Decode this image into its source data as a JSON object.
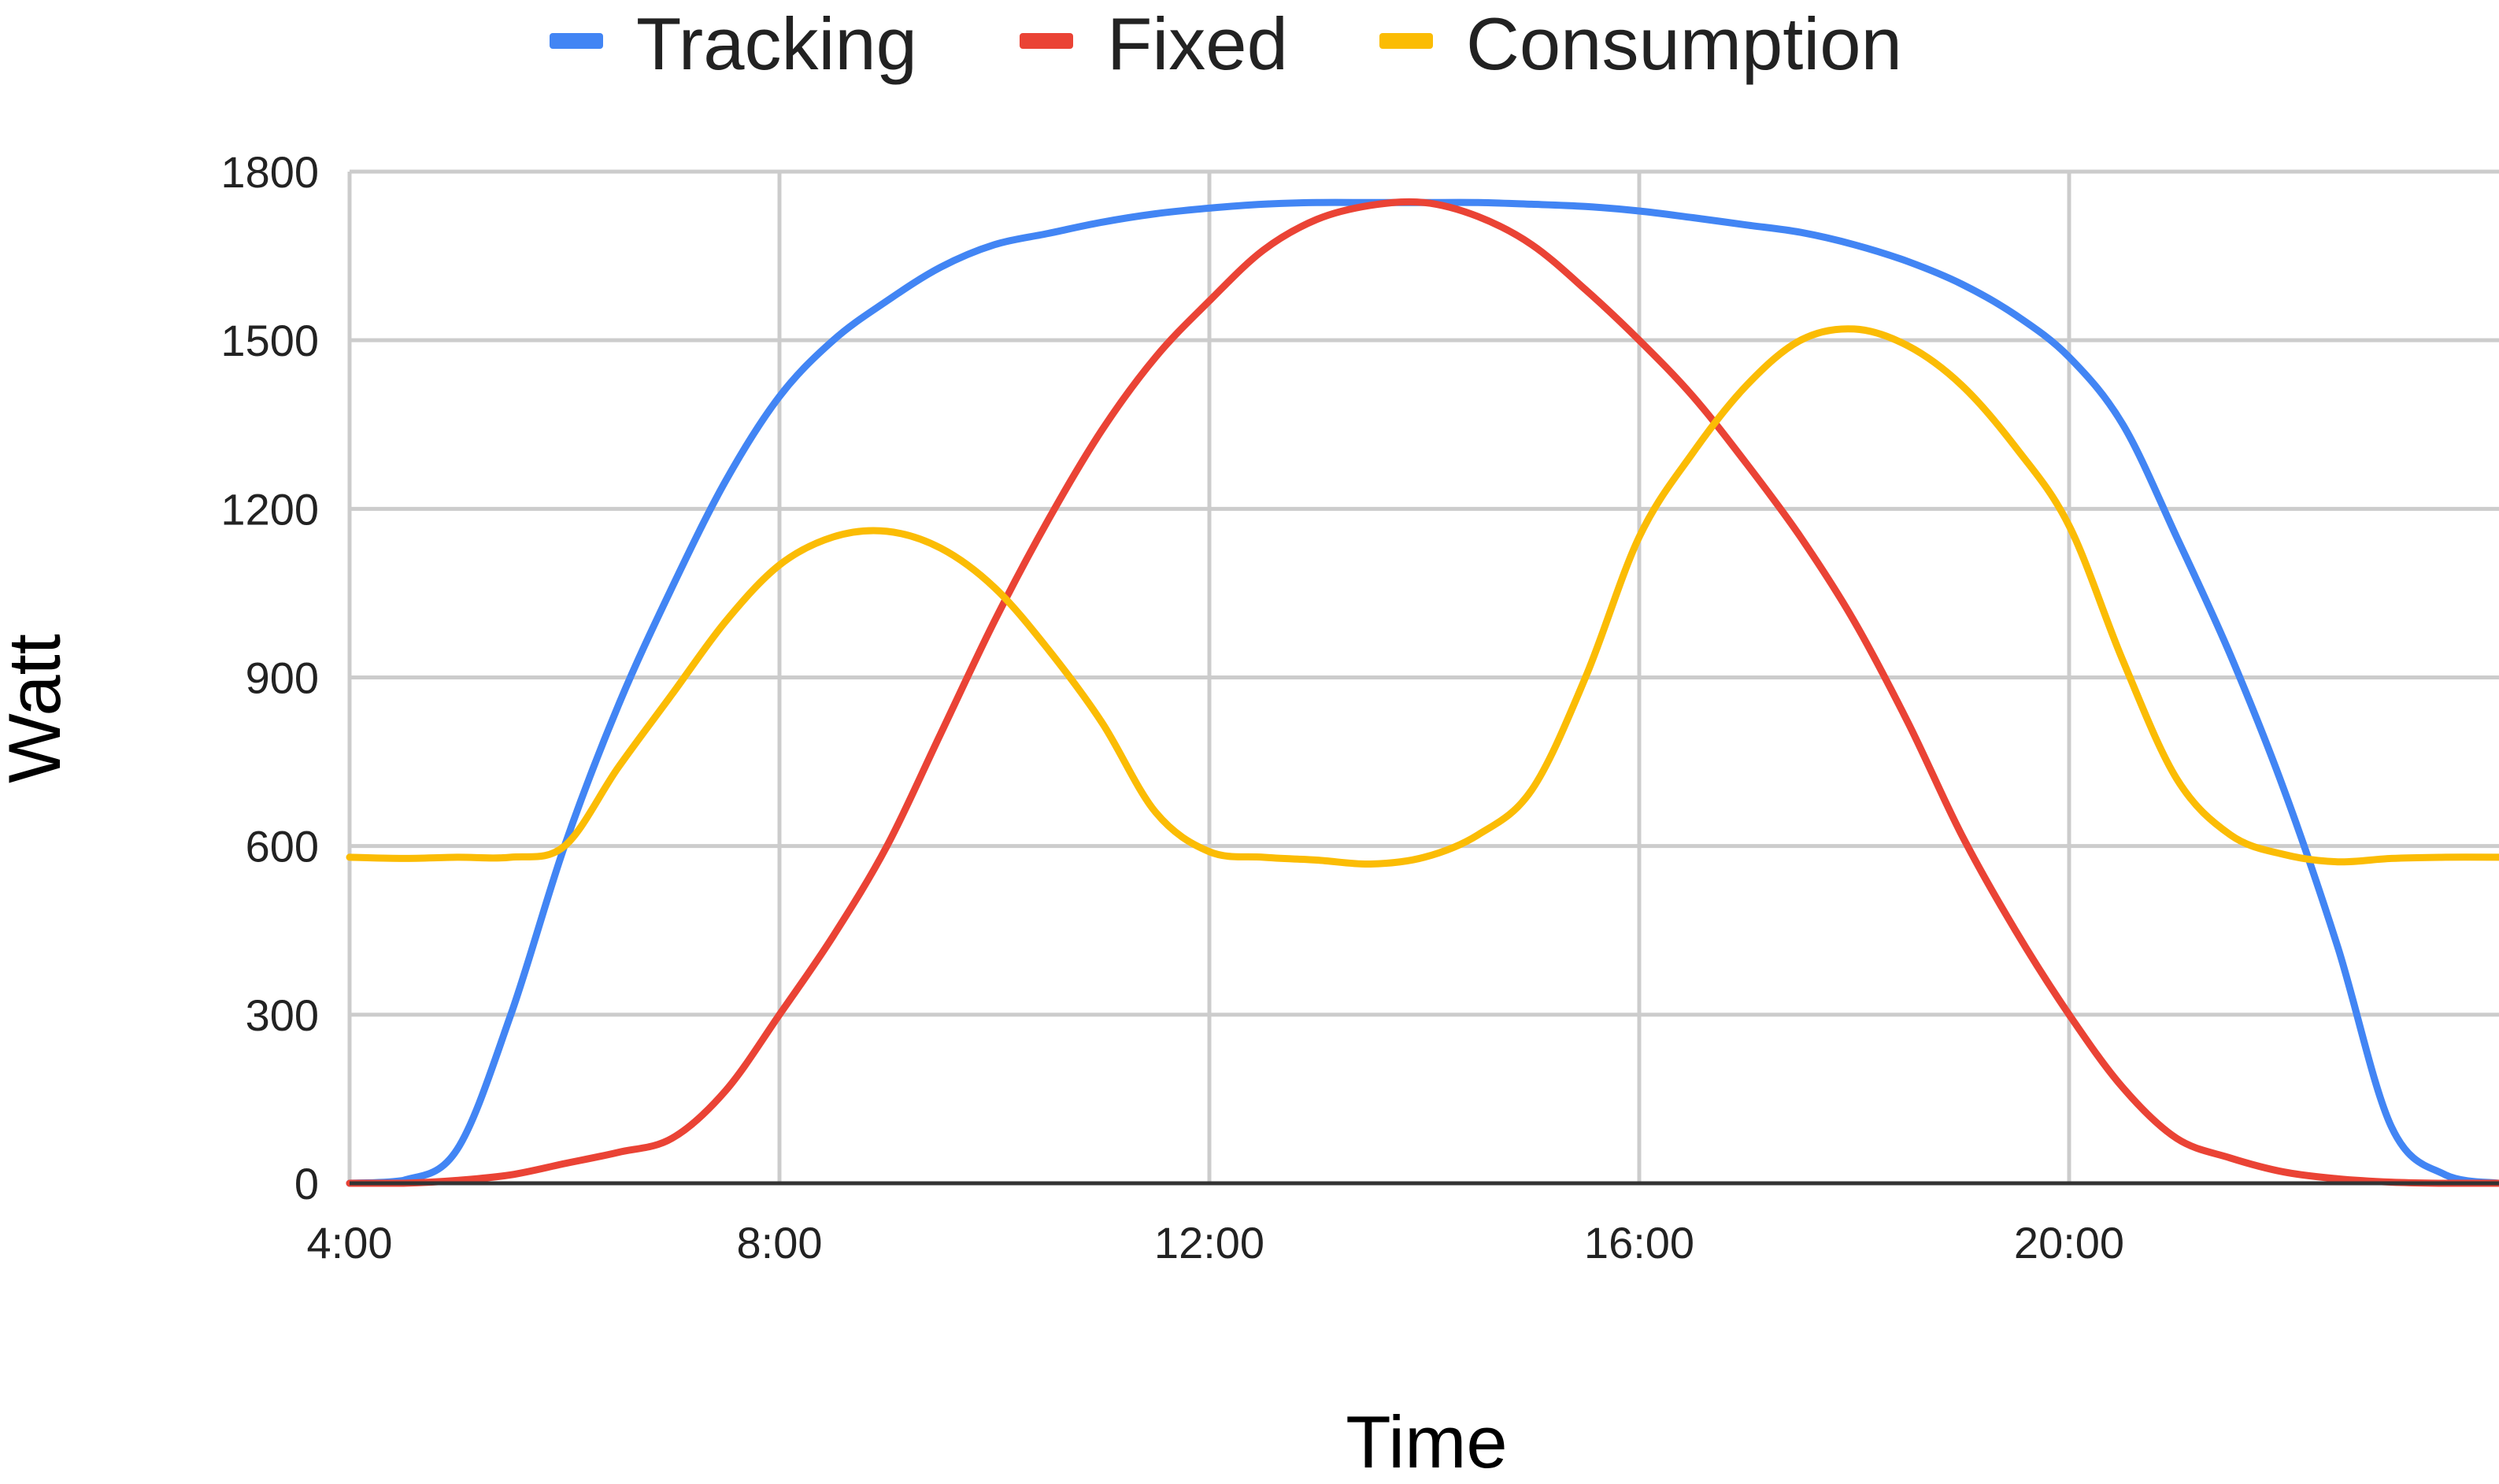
{
  "chart_data": {
    "type": "line",
    "title": "",
    "xlabel": "Time",
    "ylabel": "Watt",
    "x_unit": "hour of day",
    "xlim": [
      4,
      24
    ],
    "ylim": [
      0,
      1800
    ],
    "x_tick_values": [
      4,
      8,
      12,
      16,
      20
    ],
    "x_tick_labels": [
      "4:00",
      "8:00",
      "12:00",
      "16:00",
      "20:00"
    ],
    "y_tick_values": [
      0,
      300,
      600,
      900,
      1200,
      1500,
      1800
    ],
    "y_tick_labels": [
      "0",
      "300",
      "600",
      "900",
      "1200",
      "1500",
      "1800"
    ],
    "grid": true,
    "legend_position": "top",
    "x": [
      4,
      4.5,
      5,
      5.5,
      6,
      6.5,
      7,
      7.5,
      8,
      8.5,
      9,
      9.5,
      10,
      10.5,
      11,
      11.5,
      12,
      12.5,
      13,
      13.5,
      14,
      14.5,
      15,
      15.5,
      16,
      16.5,
      17,
      17.5,
      18,
      18.5,
      19,
      19.5,
      20,
      20.5,
      21,
      21.5,
      22,
      22.5,
      23,
      23.5,
      24
    ],
    "series": [
      {
        "name": "Tracking",
        "color": "#4285f4",
        "values": [
          0,
          5,
          60,
          300,
          600,
          850,
          1060,
          1250,
          1400,
          1500,
          1570,
          1630,
          1670,
          1690,
          1710,
          1725,
          1735,
          1742,
          1745,
          1745,
          1745,
          1745,
          1742,
          1738,
          1730,
          1718,
          1705,
          1692,
          1670,
          1640,
          1600,
          1545,
          1470,
          1350,
          1150,
          940,
          700,
          420,
          100,
          15,
          0
        ]
      },
      {
        "name": "Fixed",
        "color": "#ea4335",
        "values": [
          0,
          0,
          5,
          15,
          35,
          55,
          80,
          165,
          300,
          440,
          600,
          800,
          1000,
          1180,
          1340,
          1470,
          1570,
          1660,
          1715,
          1740,
          1745,
          1720,
          1670,
          1590,
          1500,
          1400,
          1280,
          1150,
          1000,
          820,
          620,
          450,
          300,
          170,
          80,
          45,
          20,
          8,
          2,
          0,
          0
        ]
      },
      {
        "name": "Consumption",
        "color": "#fbbc04",
        "values": [
          580,
          578,
          580,
          580,
          600,
          740,
          870,
          1000,
          1100,
          1150,
          1160,
          1130,
          1060,
          950,
          820,
          660,
          590,
          580,
          575,
          568,
          580,
          620,
          700,
          900,
          1150,
          1300,
          1420,
          1500,
          1520,
          1490,
          1420,
          1310,
          1170,
          930,
          720,
          620,
          585,
          572,
          578,
          580,
          580
        ]
      }
    ]
  }
}
